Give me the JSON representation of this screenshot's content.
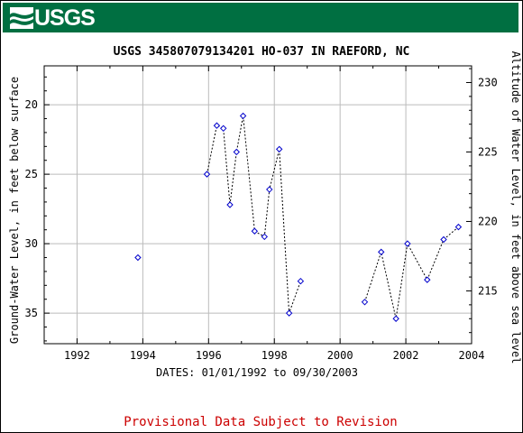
{
  "header": {
    "logo_text": "USGS",
    "banner_color": "#006f41"
  },
  "chart_data": {
    "type": "scatter",
    "title": "USGS 345807079134201 HO-037 IN RAEFORD, NC",
    "xlabel": "DATES: 01/01/1992 to 09/30/2003",
    "ylabel_left": "Ground-Water Level, in feet below surface",
    "ylabel_right": "Altitude of Water Level, in feet above sea level",
    "xlim": [
      1991.0,
      2004.0
    ],
    "ylim_left": [
      37.2,
      17.2
    ],
    "ylim_right": [
      211.2,
      231.2
    ],
    "x_ticks": [
      1992,
      1994,
      1996,
      1998,
      2000,
      2002,
      2004
    ],
    "y_ticks_left": [
      20,
      25,
      30,
      35
    ],
    "y_ticks_right": [
      215,
      220,
      225,
      230
    ],
    "grid": true,
    "marker_color": "#0000cc",
    "line_style": "dotted",
    "series": [
      {
        "segments": [
          [
            [
              1993.85,
              31.0
            ]
          ],
          [
            [
              1995.95,
              25.0
            ],
            [
              1996.25,
              21.5
            ],
            [
              1996.45,
              21.7
            ],
            [
              1996.65,
              27.2
            ],
            [
              1996.85,
              23.4
            ],
            [
              1997.05,
              20.8
            ],
            [
              1997.4,
              29.1
            ],
            [
              1997.7,
              29.5
            ],
            [
              1997.85,
              26.1
            ],
            [
              1998.15,
              23.2
            ],
            [
              1998.45,
              35.0
            ],
            [
              1998.8,
              32.7
            ]
          ],
          [
            [
              2000.75,
              34.2
            ],
            [
              2001.25,
              30.6
            ],
            [
              2001.7,
              35.4
            ],
            [
              2002.05,
              30.0
            ],
            [
              2002.65,
              32.6
            ],
            [
              2003.15,
              29.7
            ],
            [
              2003.6,
              28.8
            ]
          ]
        ]
      }
    ]
  },
  "footer": {
    "note": "Provisional Data Subject to Revision",
    "note_color": "#cc0000"
  }
}
